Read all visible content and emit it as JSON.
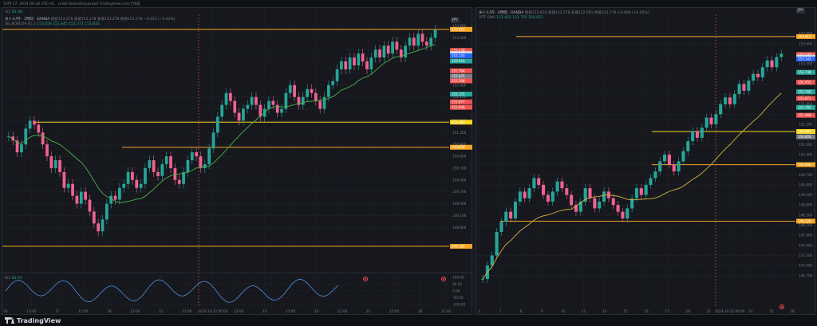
{
  "topbar": {
    "text": "10月 27, 2024 06:34 UTC+9、 u-kiti-doimatsuyasokd TradingView.comで作成"
  },
  "left_chart": {
    "rsi_label": "RCI",
    "rsi_value": "83.08",
    "symbol_line": "米ドル/円 · 1時間 · OANDA",
    "ohlc": "始値153.278 高値153.278 安値153.278 終値153.278 −0.052 (−0.03%)",
    "bb_label": "BB_BOBO29 85.2",
    "bb_values": "153.658 152.645 151.571 152.832",
    "ticker": "JPY",
    "price_labels": [
      "153.900",
      "153.600",
      "153.300",
      "153.000",
      "152.700",
      "152.400",
      "152.100",
      "151.800",
      "151.500",
      "151.200",
      "150.900",
      "150.600",
      "150.300",
      "150.000",
      "149.700",
      "149.400",
      "149.100",
      "148.800"
    ],
    "tags": [
      {
        "text": "153.812",
        "color": "#f5a623"
      },
      {
        "text": "153.278",
        "color": "#ef5350"
      },
      {
        "text": "USD/JPY",
        "color": "#d1d4dc"
      },
      {
        "text": "153.143",
        "color": "#2962ff"
      },
      {
        "text": "153.010",
        "color": "#26a69a"
      },
      {
        "text": "152.764",
        "color": "#ef5350"
      },
      {
        "text": "152.625",
        "color": "#787b86"
      },
      {
        "text": "152.508",
        "color": "#ef5350"
      },
      {
        "text": "152.172",
        "color": "#26a69a"
      },
      {
        "text": "151.977",
        "color": "#ef5350"
      },
      {
        "text": "151.840",
        "color": "#ef5350"
      },
      {
        "text": "151.463",
        "color": "#f5d423"
      },
      {
        "text": "150.828",
        "color": "#f5a623"
      },
      {
        "text": "148.320",
        "color": "#f5a623"
      }
    ],
    "rci_label": "RCI",
    "rci_value": "83.07",
    "rci_scale": [
      "100.00",
      "50.00",
      "0.00",
      "-50.00",
      "-100.00"
    ],
    "x_labels": [
      "16",
      "12:00",
      "17",
      "12:00",
      "18",
      "12:00",
      "21",
      "12:00",
      "2024-10-22 00:00",
      "12:00",
      "23",
      "12:00",
      "24",
      "12:00",
      "25",
      "12:00",
      "28",
      "12:00"
    ],
    "candles": [
      151.1,
      151.0,
      150.7,
      150.9,
      151.3,
      151.5,
      151.4,
      151.2,
      150.9,
      150.6,
      150.3,
      150.5,
      150.2,
      149.8,
      149.9,
      149.6,
      149.4,
      149.7,
      149.5,
      149.2,
      148.9,
      148.7,
      149.0,
      149.4,
      149.6,
      149.5,
      149.8,
      149.9,
      150.2,
      150.0,
      149.8,
      149.9,
      150.3,
      150.5,
      150.2,
      150.1,
      150.4,
      150.6,
      150.3,
      150.0,
      149.9,
      150.2,
      150.5,
      150.7,
      150.6,
      150.3,
      150.4,
      150.8,
      151.2,
      151.6,
      151.9,
      152.2,
      152.0,
      151.7,
      151.5,
      151.8,
      151.9,
      152.1,
      151.9,
      151.6,
      151.8,
      152.0,
      151.9,
      151.7,
      151.8,
      152.2,
      152.4,
      152.1,
      151.9,
      152.1,
      152.3,
      152.2,
      152.0,
      151.8,
      152.1,
      152.4,
      152.5,
      152.8,
      153.0,
      152.8,
      153.1,
      152.9,
      153.2,
      153.0,
      152.8,
      153.1,
      153.3,
      153.1,
      153.4,
      153.2,
      153.5,
      153.3,
      153.1,
      153.4,
      153.6,
      153.4,
      153.7,
      153.5,
      153.4,
      153.6,
      153.8
    ]
  },
  "right_chart": {
    "symbol_line": "米ドル/円 · 4時間 · OANDA",
    "ohlc": "始値152.810 高値153.278 安値152.691 終値153.278 +0.068 (+0.05%)",
    "ma_label": "MTF-SMA",
    "ma_values": "152.452 151.702 150.023",
    "ticker": "JPY",
    "price_labels": [
      "153.900",
      "153.600",
      "153.300",
      "153.000",
      "152.700",
      "152.400",
      "152.100",
      "151.800",
      "151.500",
      "151.200",
      "150.900",
      "150.600",
      "150.300",
      "150.000",
      "149.700",
      "149.400",
      "149.100",
      "148.800",
      "148.500",
      "148.200",
      "147.900",
      "147.600",
      "147.300",
      "147.000",
      "146.700"
    ],
    "tags": [
      {
        "text": "153.812",
        "color": "#f5a623"
      },
      {
        "text": "153.278",
        "color": "#ef5350"
      },
      {
        "text": "USD/JPY",
        "color": "#d1d4dc"
      },
      {
        "text": "153.143",
        "color": "#2962ff"
      },
      {
        "text": "152.748",
        "color": "#26a69a"
      },
      {
        "text": "152.452",
        "color": "#ef5350"
      },
      {
        "text": "152.168",
        "color": "#26a69a"
      },
      {
        "text": "151.971",
        "color": "#ef5350"
      },
      {
        "text": "151.702",
        "color": "#26a69a"
      },
      {
        "text": "151.468",
        "color": "#ef5350"
      },
      {
        "text": "150.987",
        "color": "#f5d423"
      },
      {
        "text": "150.828",
        "color": "#787b86"
      },
      {
        "text": "150.000",
        "color": "#f5a623"
      },
      {
        "text": "148.320",
        "color": "#f5a623"
      }
    ],
    "x_labels": [
      "4",
      "7",
      "8",
      "9",
      "10",
      "11",
      "14",
      "15",
      "16",
      "17",
      "18",
      "21",
      "2024-10-22 00:00",
      "24",
      "25",
      "28"
    ],
    "candles": [
      146.6,
      147.0,
      147.3,
      148.0,
      148.3,
      148.6,
      148.4,
      148.9,
      149.2,
      149.0,
      149.3,
      149.6,
      149.4,
      149.1,
      148.9,
      149.2,
      149.5,
      149.3,
      149.1,
      148.8,
      148.6,
      148.9,
      149.3,
      149.0,
      148.7,
      148.9,
      149.2,
      149.0,
      148.8,
      148.6,
      148.4,
      148.7,
      149.0,
      149.3,
      149.1,
      149.4,
      149.6,
      149.8,
      150.1,
      150.3,
      150.0,
      149.8,
      150.1,
      150.4,
      150.7,
      151.0,
      150.8,
      151.1,
      151.4,
      151.2,
      151.5,
      151.8,
      152.0,
      151.8,
      152.1,
      152.4,
      152.2,
      152.5,
      152.7,
      152.6,
      152.9,
      153.1,
      152.9,
      153.2,
      153.3
    ]
  }
}
